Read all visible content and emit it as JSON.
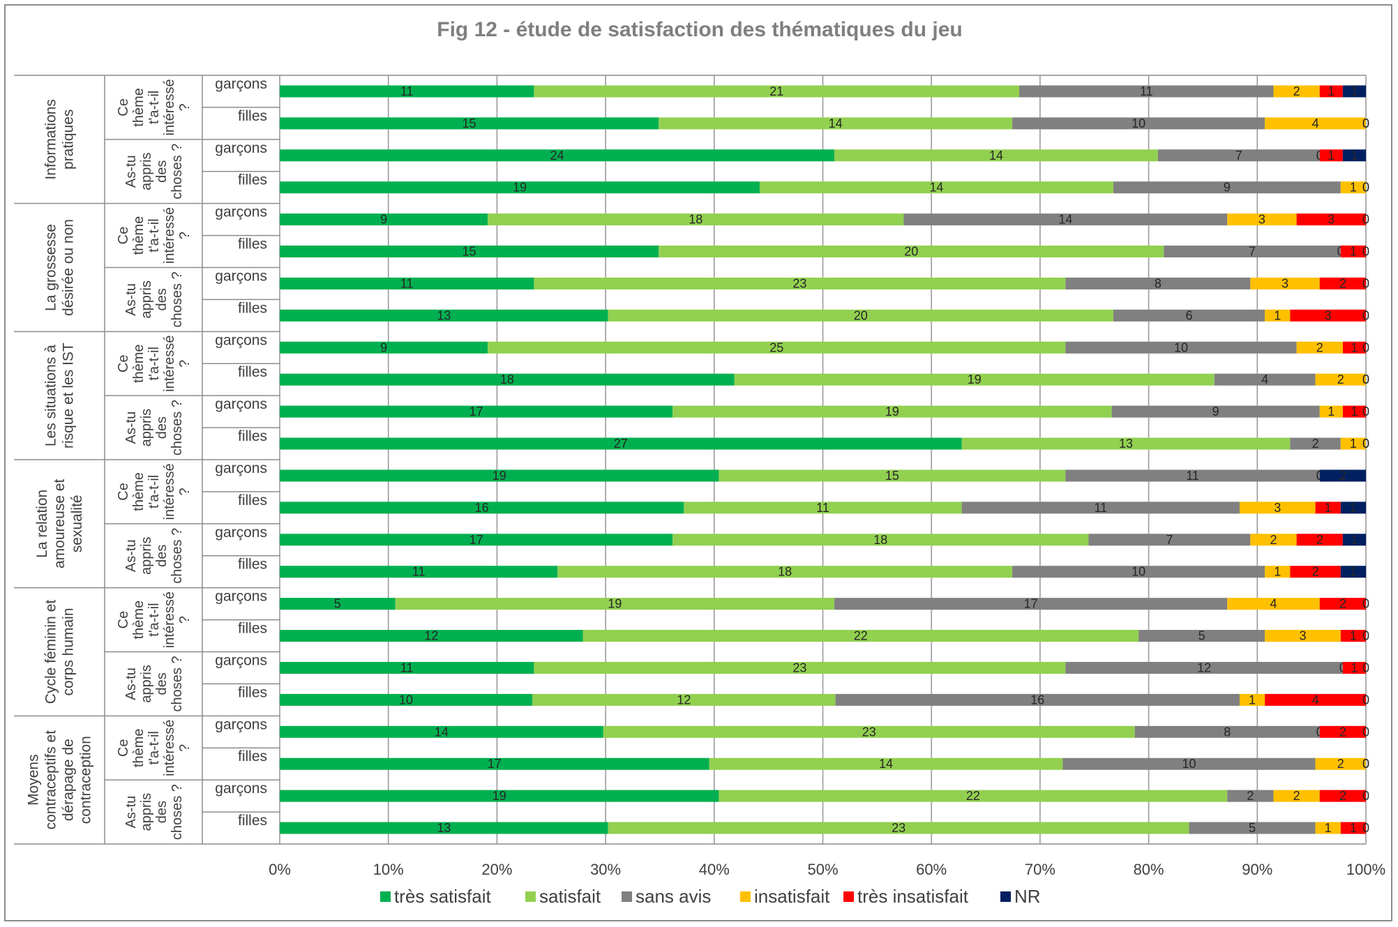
{
  "chart_data": {
    "type": "bar",
    "orientation": "horizontal",
    "stacked": "percent",
    "title": "Fig 12 - étude de satisfaction des thématiques du jeu",
    "xlim": [
      0,
      1
    ],
    "xticks": [
      "0%",
      "10%",
      "20%",
      "30%",
      "40%",
      "50%",
      "60%",
      "70%",
      "80%",
      "90%",
      "100%"
    ],
    "grid": true,
    "legend_position": "bottom",
    "series": [
      {
        "name": "très satisfait",
        "color": "#00b050"
      },
      {
        "name": "satisfait",
        "color": "#92d050"
      },
      {
        "name": "sans avis",
        "color": "#808080"
      },
      {
        "name": "insatisfait",
        "color": "#ffc000"
      },
      {
        "name": "très insatisfait",
        "color": "#ff0000"
      },
      {
        "name": "NR",
        "color": "#002060"
      }
    ],
    "groups": [
      {
        "name": "Informations pratiques",
        "questions": [
          {
            "name": "Ce thème t'a-t-il intéressé ?",
            "rows": [
              {
                "label": "garçons",
                "values": [
                  11,
                  21,
                  11,
                  2,
                  1,
                  1
                ]
              },
              {
                "label": "filles",
                "values": [
                  15,
                  14,
                  10,
                  4,
                  0,
                  0
                ]
              }
            ]
          },
          {
            "name": "As-tu appris des choses ?",
            "rows": [
              {
                "label": "garçons",
                "values": [
                  24,
                  14,
                  7,
                  0,
                  1,
                  1
                ]
              },
              {
                "label": "filles",
                "values": [
                  19,
                  14,
                  9,
                  1,
                  0,
                  0
                ]
              }
            ]
          }
        ]
      },
      {
        "name": "La grossesse désirée ou non",
        "questions": [
          {
            "name": "Ce thème t'a-t-il intéressé ?",
            "rows": [
              {
                "label": "garçons",
                "values": [
                  9,
                  18,
                  14,
                  3,
                  3,
                  0
                ]
              },
              {
                "label": "filles",
                "values": [
                  15,
                  20,
                  7,
                  0,
                  1,
                  0
                ]
              }
            ]
          },
          {
            "name": "As-tu appris des choses ?",
            "rows": [
              {
                "label": "garçons",
                "values": [
                  11,
                  23,
                  8,
                  3,
                  2,
                  0
                ]
              },
              {
                "label": "filles",
                "values": [
                  13,
                  20,
                  6,
                  1,
                  3,
                  0
                ]
              }
            ]
          }
        ]
      },
      {
        "name": "Les situations à risque et les IST",
        "questions": [
          {
            "name": "Ce thème t'a-t-il intéressé ?",
            "rows": [
              {
                "label": "garçons",
                "values": [
                  9,
                  25,
                  10,
                  2,
                  1,
                  0
                ]
              },
              {
                "label": "filles",
                "values": [
                  18,
                  19,
                  4,
                  2,
                  0,
                  0
                ]
              }
            ]
          },
          {
            "name": "As-tu appris des choses ?",
            "rows": [
              {
                "label": "garçons",
                "values": [
                  17,
                  19,
                  9,
                  1,
                  1,
                  0
                ]
              },
              {
                "label": "filles",
                "values": [
                  27,
                  13,
                  2,
                  1,
                  0,
                  0
                ]
              }
            ]
          }
        ]
      },
      {
        "name": "La relation amoureuse et sexualité",
        "questions": [
          {
            "name": "Ce thème t'a-t-il intéressé ?",
            "rows": [
              {
                "label": "garçons",
                "values": [
                  19,
                  15,
                  11,
                  0,
                  0,
                  2
                ]
              },
              {
                "label": "filles",
                "values": [
                  16,
                  11,
                  11,
                  3,
                  1,
                  1
                ]
              }
            ]
          },
          {
            "name": "As-tu appris des choses ?",
            "rows": [
              {
                "label": "garçons",
                "values": [
                  17,
                  18,
                  7,
                  2,
                  2,
                  1
                ]
              },
              {
                "label": "filles",
                "values": [
                  11,
                  18,
                  10,
                  1,
                  2,
                  1
                ]
              }
            ]
          }
        ]
      },
      {
        "name": "Cycle féminin et corps humain",
        "questions": [
          {
            "name": "Ce thème t'a-t-il intéressé ?",
            "rows": [
              {
                "label": "garçons",
                "values": [
                  5,
                  19,
                  17,
                  4,
                  2,
                  0
                ]
              },
              {
                "label": "filles",
                "values": [
                  12,
                  22,
                  5,
                  3,
                  1,
                  0
                ]
              }
            ]
          },
          {
            "name": "As-tu appris des choses ?",
            "rows": [
              {
                "label": "garçons",
                "values": [
                  11,
                  23,
                  12,
                  0,
                  1,
                  0
                ]
              },
              {
                "label": "filles",
                "values": [
                  10,
                  12,
                  16,
                  1,
                  4,
                  0
                ]
              }
            ]
          }
        ]
      },
      {
        "name": "Moyens contraceptifs et dérapage de contraception",
        "questions": [
          {
            "name": "Ce thème t'a-t-il intéressé ?",
            "rows": [
              {
                "label": "garçons",
                "values": [
                  14,
                  23,
                  8,
                  0,
                  2,
                  0
                ]
              },
              {
                "label": "filles",
                "values": [
                  17,
                  14,
                  10,
                  2,
                  0,
                  0
                ]
              }
            ]
          },
          {
            "name": "As-tu appris des choses ?",
            "rows": [
              {
                "label": "garçons",
                "values": [
                  19,
                  22,
                  2,
                  2,
                  2,
                  0
                ]
              },
              {
                "label": "filles",
                "values": [
                  13,
                  23,
                  5,
                  1,
                  1,
                  0
                ]
              }
            ]
          }
        ]
      }
    ]
  }
}
